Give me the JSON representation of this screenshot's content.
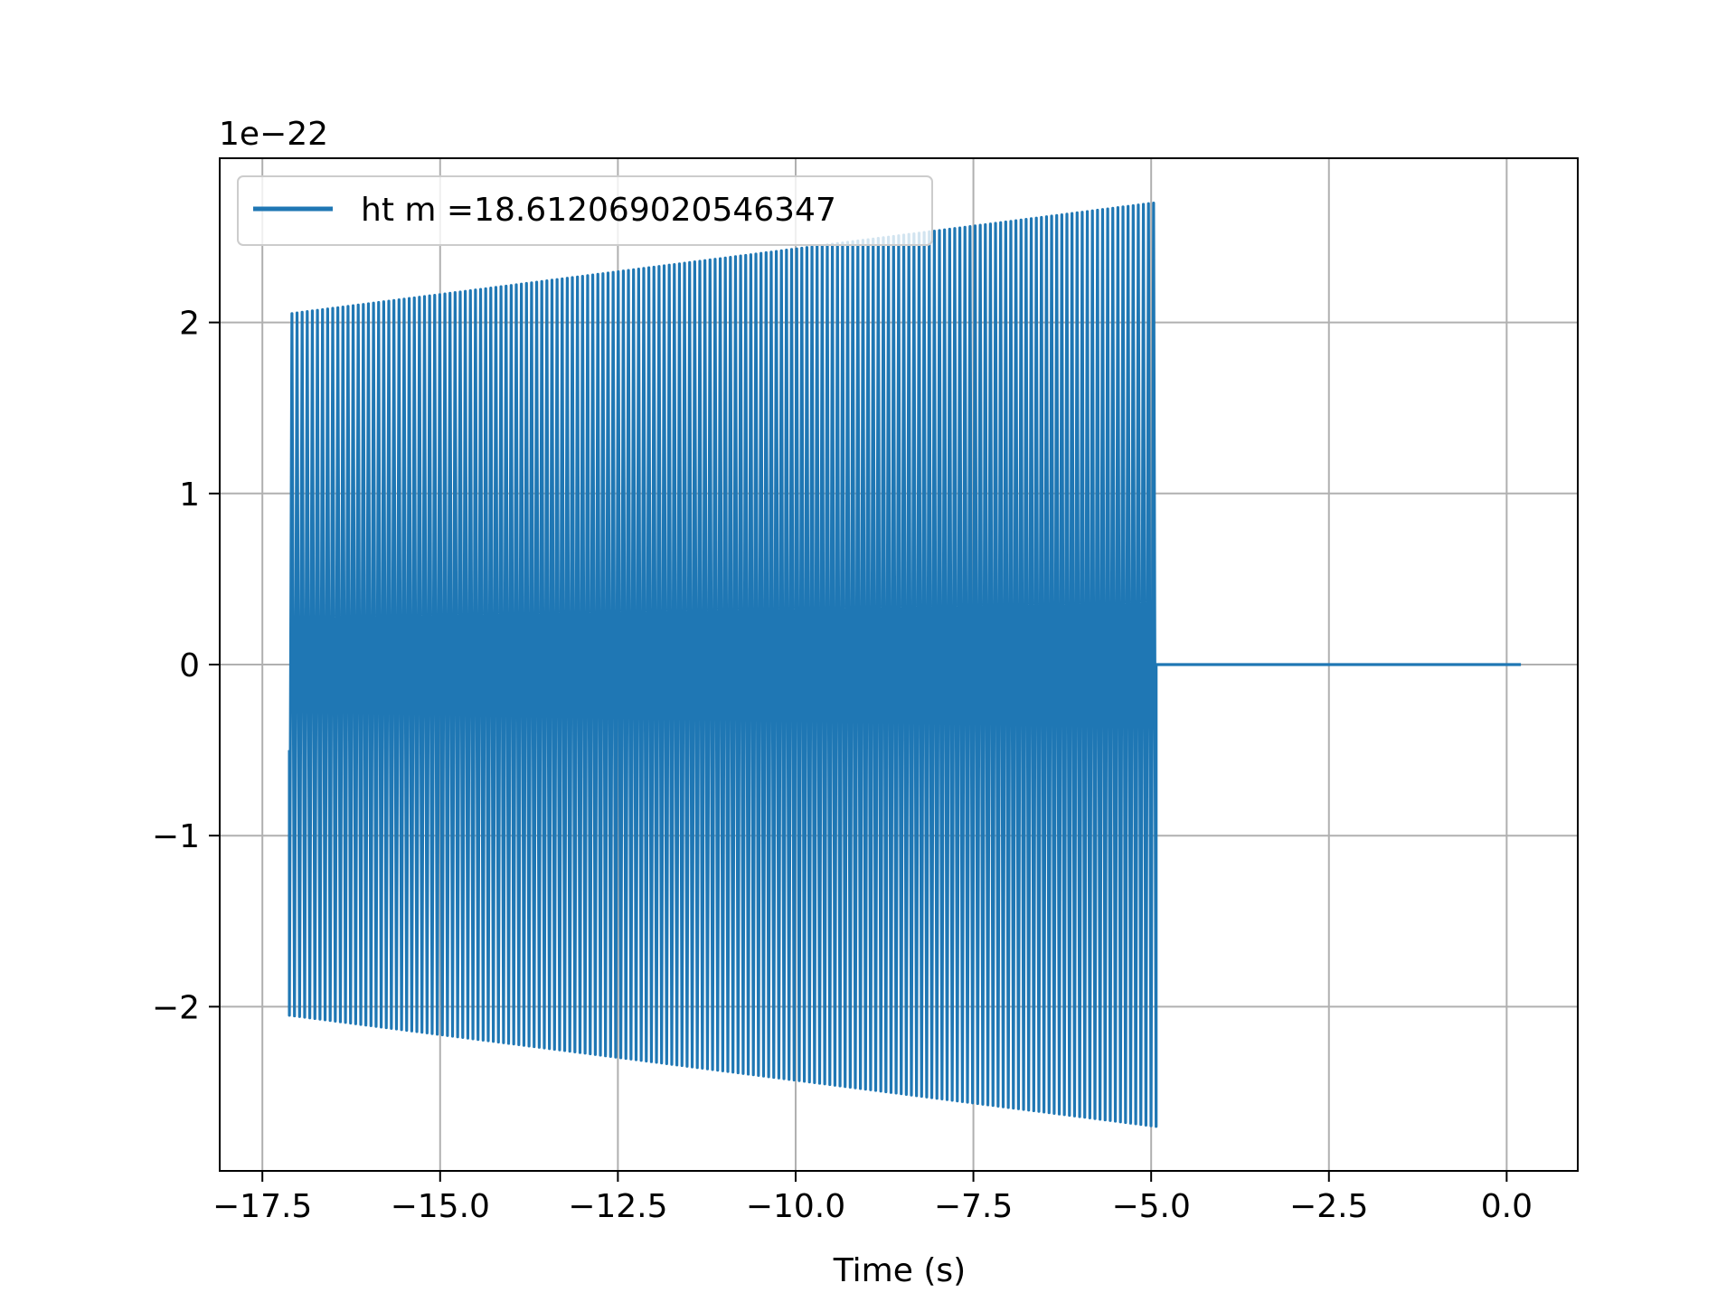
{
  "chart_data": {
    "type": "line",
    "title": "",
    "xlabel": "Time (s)",
    "ylabel": "",
    "y_offset_label": "1e−22",
    "xlim": [
      -18.1,
      1.0
    ],
    "ylim": [
      -2.96,
      2.96
    ],
    "x_ticks": [
      {
        "value": -17.5,
        "label": "−17.5"
      },
      {
        "value": -15.0,
        "label": "−15.0"
      },
      {
        "value": -12.5,
        "label": "−12.5"
      },
      {
        "value": -10.0,
        "label": "−10.0"
      },
      {
        "value": -7.5,
        "label": "−7.5"
      },
      {
        "value": -5.0,
        "label": "−5.0"
      },
      {
        "value": -2.5,
        "label": "−2.5"
      },
      {
        "value": 0.0,
        "label": "0.0"
      }
    ],
    "y_ticks": [
      {
        "value": -2,
        "label": "−2"
      },
      {
        "value": -1,
        "label": "−1"
      },
      {
        "value": 0,
        "label": "0"
      },
      {
        "value": 1,
        "label": "1"
      },
      {
        "value": 2,
        "label": "2"
      }
    ],
    "grid": true,
    "legend": {
      "placement": "upper-left"
    },
    "series": [
      {
        "name": "ht m =18.612069020546347",
        "color": "#1f77b4",
        "signal": {
          "start_time": -17.12,
          "end_time": -4.93,
          "start_amplitude": 2.05,
          "end_amplitude": 2.7,
          "initial_value": -0.5,
          "post_signal_value": 0.0,
          "post_signal_end_time": 0.2
        }
      }
    ]
  }
}
